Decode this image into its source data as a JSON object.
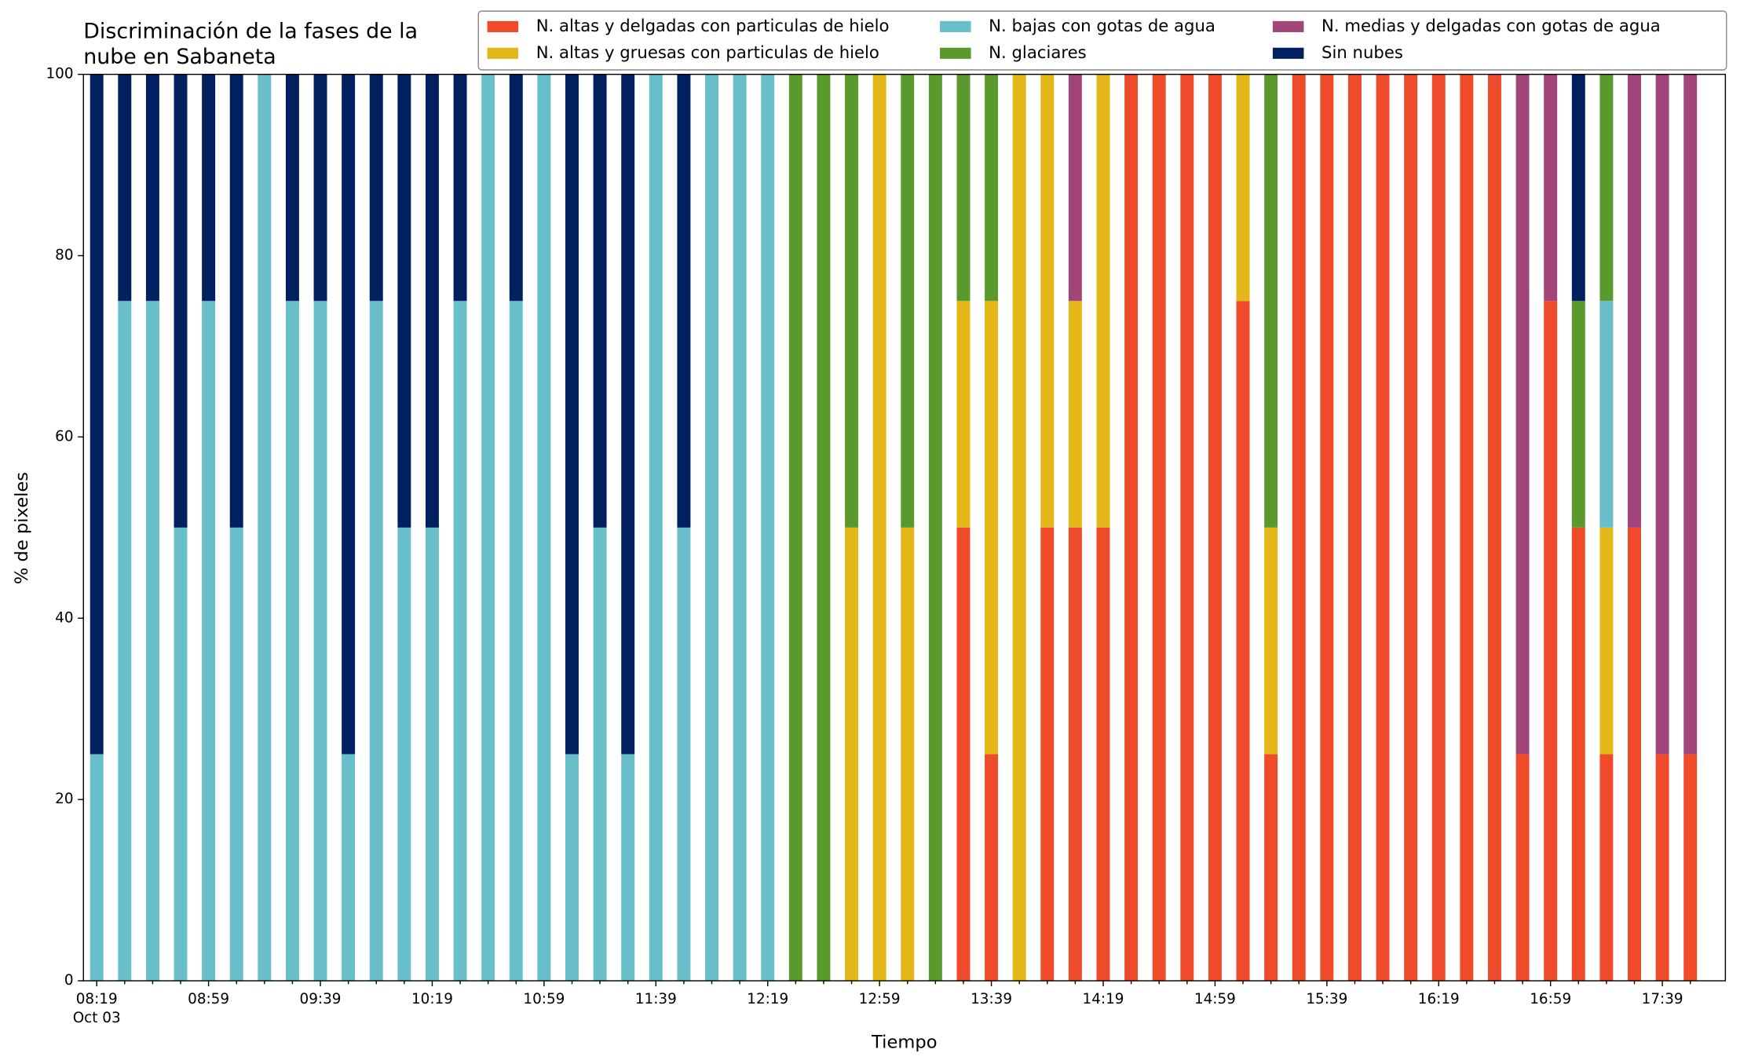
{
  "chart_data": {
    "type": "stacked_bar",
    "title": [
      "Discriminación de la fases de la",
      "nube en Sabaneta"
    ],
    "xlabel": "Tiempo",
    "ylabel": "% de pixeles",
    "x_date_label": "Oct 03",
    "categories": [
      "08:19",
      null,
      null,
      null,
      "08:59",
      null,
      null,
      null,
      "09:39",
      null,
      null,
      null,
      "10:19",
      null,
      null,
      null,
      "10:59",
      null,
      null,
      null,
      "11:39",
      null,
      null,
      null,
      "12:19",
      null,
      null,
      null,
      "12:59",
      null,
      null,
      null,
      "13:39",
      null,
      null,
      null,
      "14:19",
      null,
      null,
      null,
      "14:59",
      null,
      null,
      null,
      "15:39",
      null,
      null,
      null,
      "16:19",
      null,
      null,
      null,
      "16:59",
      null,
      null,
      null,
      "17:39",
      null
    ],
    "series": [
      {
        "name": "N. altas y delgadas con particulas de hielo",
        "color": "#ef4b2b",
        "values": [
          0,
          0,
          0,
          0,
          0,
          0,
          0,
          0,
          0,
          0,
          0,
          0,
          0,
          0,
          0,
          0,
          0,
          0,
          0,
          0,
          0,
          0,
          0,
          0,
          0,
          0,
          0,
          0,
          0,
          0,
          0,
          50,
          25,
          0,
          50,
          50,
          50,
          100,
          100,
          100,
          100,
          75,
          25,
          100,
          100,
          100,
          100,
          100,
          100,
          100,
          100,
          25,
          75,
          50,
          25,
          50,
          25,
          25
        ]
      },
      {
        "name": "N. altas y gruesas con particulas de hielo",
        "color": "#e3b717",
        "values": [
          0,
          0,
          0,
          0,
          0,
          0,
          0,
          0,
          0,
          0,
          0,
          0,
          0,
          0,
          0,
          0,
          0,
          0,
          0,
          0,
          0,
          0,
          0,
          0,
          0,
          0,
          0,
          50,
          100,
          50,
          0,
          25,
          50,
          100,
          50,
          25,
          50,
          0,
          0,
          0,
          0,
          25,
          25,
          0,
          0,
          0,
          0,
          0,
          0,
          0,
          0,
          0,
          0,
          0,
          25,
          0,
          0,
          0
        ]
      },
      {
        "name": "N. bajas con gotas de agua",
        "color": "#68bfca",
        "values": [
          25,
          75,
          75,
          50,
          75,
          50,
          100,
          75,
          75,
          25,
          75,
          50,
          50,
          75,
          100,
          75,
          100,
          25,
          50,
          25,
          100,
          50,
          100,
          100,
          100,
          0,
          0,
          0,
          0,
          0,
          0,
          0,
          0,
          0,
          0,
          0,
          0,
          0,
          0,
          0,
          0,
          0,
          0,
          0,
          0,
          0,
          0,
          0,
          0,
          0,
          0,
          0,
          0,
          0,
          25,
          0,
          0,
          0
        ]
      },
      {
        "name": "N. glaciares",
        "color": "#5a9a2c",
        "values": [
          0,
          0,
          0,
          0,
          0,
          0,
          0,
          0,
          0,
          0,
          0,
          0,
          0,
          0,
          0,
          0,
          0,
          0,
          0,
          0,
          0,
          0,
          0,
          0,
          0,
          100,
          100,
          50,
          0,
          50,
          100,
          25,
          25,
          0,
          0,
          0,
          0,
          0,
          0,
          0,
          0,
          0,
          50,
          0,
          0,
          0,
          0,
          0,
          0,
          0,
          0,
          0,
          0,
          25,
          25,
          0,
          0,
          0
        ]
      },
      {
        "name": "N. medias y delgadas con gotas de agua",
        "color": "#a2457a",
        "values": [
          0,
          0,
          0,
          0,
          0,
          0,
          0,
          0,
          0,
          0,
          0,
          0,
          0,
          0,
          0,
          0,
          0,
          0,
          0,
          0,
          0,
          0,
          0,
          0,
          0,
          0,
          0,
          0,
          0,
          0,
          0,
          0,
          0,
          0,
          0,
          25,
          0,
          0,
          0,
          0,
          0,
          0,
          0,
          0,
          0,
          0,
          0,
          0,
          0,
          0,
          0,
          75,
          25,
          0,
          0,
          50,
          75,
          75
        ]
      },
      {
        "name": "Sin nubes",
        "color": "#002060",
        "values": [
          75,
          25,
          25,
          50,
          25,
          50,
          0,
          25,
          25,
          75,
          25,
          50,
          50,
          25,
          0,
          25,
          0,
          75,
          50,
          75,
          0,
          50,
          0,
          0,
          0,
          0,
          0,
          0,
          0,
          0,
          0,
          0,
          0,
          0,
          0,
          0,
          0,
          0,
          0,
          0,
          0,
          0,
          0,
          0,
          0,
          0,
          0,
          0,
          0,
          0,
          0,
          0,
          0,
          25,
          0,
          0,
          0,
          0
        ]
      }
    ],
    "ylim": [
      0,
      100
    ],
    "yticks": [
      0,
      20,
      40,
      60,
      80,
      100
    ],
    "legend_columns": 3
  }
}
